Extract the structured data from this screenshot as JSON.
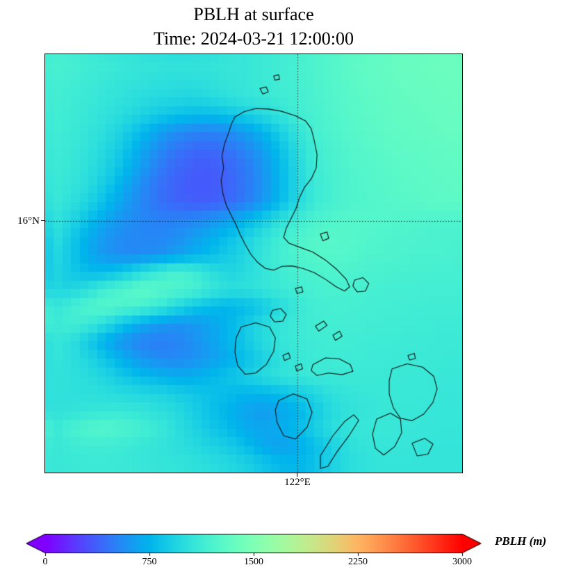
{
  "title": "PBLH at surface",
  "subtitle": "Time: 2024-03-21 12:00:00",
  "map": {
    "y_tick_label": "16°N",
    "x_tick_label": "122°E"
  },
  "colorbar": {
    "label": "PBLH (m)",
    "tick_labels": [
      "0",
      "750",
      "1500",
      "2250",
      "3000"
    ]
  },
  "chart_data": {
    "type": "heatmap",
    "title": "PBLH at surface",
    "subtitle": "Time: 2024-03-21 12:00:00",
    "variable": "PBLH",
    "units": "m",
    "colormap": "rainbow",
    "value_range": [
      0,
      3000
    ],
    "colorbar_ticks": [
      0,
      750,
      1500,
      2250,
      3000
    ],
    "gridlines": {
      "latitude": "16°N",
      "longitude": "122°E"
    },
    "grid_shape": [
      24,
      24
    ],
    "values_m": [
      [
        1180,
        1160,
        1130,
        1110,
        1090,
        1070,
        1060,
        1050,
        1050,
        1060,
        1070,
        1080,
        1100,
        1130,
        1170,
        1210,
        1250,
        1290,
        1320,
        1340,
        1360,
        1370,
        1380,
        1380
      ],
      [
        1160,
        1140,
        1110,
        1080,
        1060,
        1040,
        1020,
        1010,
        1010,
        1030,
        1060,
        1080,
        1100,
        1130,
        1160,
        1200,
        1240,
        1280,
        1310,
        1330,
        1350,
        1360,
        1370,
        1380
      ],
      [
        1150,
        1120,
        1090,
        1060,
        1030,
        1000,
        980,
        960,
        950,
        980,
        1020,
        1060,
        1090,
        1120,
        1150,
        1190,
        1230,
        1270,
        1300,
        1320,
        1340,
        1350,
        1360,
        1370
      ],
      [
        1140,
        1110,
        1080,
        1040,
        990,
        930,
        870,
        820,
        790,
        790,
        830,
        890,
        960,
        1050,
        1130,
        1180,
        1220,
        1260,
        1290,
        1310,
        1330,
        1340,
        1350,
        1360
      ],
      [
        1130,
        1100,
        1060,
        1000,
        910,
        790,
        660,
        570,
        520,
        510,
        550,
        630,
        740,
        890,
        1050,
        1160,
        1210,
        1250,
        1280,
        1300,
        1320,
        1330,
        1340,
        1350
      ],
      [
        1120,
        1090,
        1040,
        960,
        850,
        700,
        560,
        460,
        410,
        400,
        440,
        520,
        640,
        800,
        990,
        1130,
        1190,
        1230,
        1260,
        1290,
        1300,
        1310,
        1320,
        1330
      ],
      [
        1110,
        1080,
        1020,
        930,
        800,
        640,
        500,
        410,
        360,
        350,
        390,
        470,
        590,
        760,
        960,
        1110,
        1180,
        1220,
        1250,
        1270,
        1290,
        1300,
        1310,
        1320
      ],
      [
        1100,
        1060,
        990,
        870,
        720,
        570,
        450,
        380,
        340,
        340,
        380,
        460,
        580,
        750,
        950,
        1100,
        1170,
        1210,
        1240,
        1260,
        1280,
        1290,
        1300,
        1310
      ],
      [
        1090,
        1030,
        930,
        790,
        650,
        540,
        450,
        390,
        360,
        360,
        400,
        480,
        600,
        770,
        960,
        1100,
        1170,
        1210,
        1230,
        1250,
        1270,
        1280,
        1290,
        1300
      ],
      [
        1060,
        950,
        810,
        680,
        590,
        540,
        510,
        510,
        530,
        580,
        650,
        740,
        870,
        1010,
        1120,
        1190,
        1230,
        1250,
        1250,
        1240,
        1230,
        1220,
        1210,
        1210
      ],
      [
        1020,
        880,
        720,
        610,
        550,
        530,
        530,
        560,
        630,
        710,
        800,
        900,
        1020,
        1130,
        1200,
        1250,
        1260,
        1250,
        1230,
        1220,
        1210,
        1200,
        1190,
        1190
      ],
      [
        980,
        850,
        700,
        600,
        550,
        550,
        570,
        630,
        710,
        790,
        870,
        950,
        1060,
        1150,
        1210,
        1250,
        1250,
        1240,
        1220,
        1210,
        1200,
        1190,
        1190,
        1180
      ],
      [
        950,
        860,
        790,
        790,
        860,
        980,
        1100,
        1180,
        1140,
        1020,
        940,
        980,
        1060,
        1120,
        1170,
        1200,
        1210,
        1200,
        1190,
        1180,
        1170,
        1170,
        1160,
        1160
      ],
      [
        960,
        940,
        1020,
        1140,
        1220,
        1300,
        1260,
        1220,
        1180,
        1100,
        1020,
        1020,
        1060,
        1100,
        1140,
        1170,
        1180,
        1170,
        1170,
        1160,
        1150,
        1150,
        1140,
        1140
      ],
      [
        1060,
        1140,
        1220,
        1260,
        1220,
        1180,
        1100,
        980,
        860,
        790,
        750,
        790,
        860,
        980,
        1080,
        1140,
        1160,
        1160,
        1150,
        1140,
        1140,
        1130,
        1130,
        1130
      ],
      [
        1100,
        1140,
        1100,
        980,
        830,
        710,
        630,
        590,
        610,
        670,
        750,
        860,
        980,
        1060,
        1110,
        1140,
        1150,
        1140,
        1140,
        1130,
        1130,
        1120,
        1120,
        1110
      ],
      [
        1080,
        1020,
        870,
        710,
        590,
        510,
        490,
        510,
        570,
        650,
        750,
        860,
        980,
        1060,
        1100,
        1120,
        1130,
        1130,
        1120,
        1120,
        1110,
        1110,
        1100,
        1100
      ],
      [
        1060,
        1020,
        940,
        830,
        710,
        610,
        550,
        540,
        570,
        630,
        710,
        800,
        900,
        1020,
        1080,
        1110,
        1120,
        1120,
        1110,
        1110,
        1100,
        1100,
        1100,
        1090
      ],
      [
        1040,
        1030,
        1000,
        940,
        860,
        790,
        750,
        710,
        720,
        770,
        830,
        900,
        980,
        1040,
        1080,
        1100,
        1100,
        1100,
        1100,
        1090,
        1090,
        1090,
        1080,
        1080
      ],
      [
        1030,
        1020,
        1020,
        1000,
        980,
        960,
        940,
        900,
        860,
        820,
        790,
        750,
        750,
        790,
        860,
        940,
        1020,
        1060,
        1080,
        1090,
        1090,
        1090,
        1080,
        1080
      ],
      [
        1040,
        1050,
        1060,
        1080,
        1080,
        1060,
        1020,
        980,
        900,
        820,
        750,
        670,
        630,
        670,
        750,
        860,
        980,
        1040,
        1070,
        1080,
        1080,
        1080,
        1070,
        1070
      ],
      [
        1090,
        1170,
        1230,
        1250,
        1210,
        1160,
        1100,
        1020,
        940,
        860,
        790,
        710,
        670,
        710,
        790,
        900,
        1000,
        1060,
        1080,
        1090,
        1080,
        1080,
        1070,
        1070
      ],
      [
        1080,
        1110,
        1130,
        1130,
        1110,
        1080,
        1060,
        1020,
        980,
        930,
        880,
        800,
        700,
        650,
        700,
        800,
        920,
        1010,
        1060,
        1070,
        1070,
        1060,
        1060,
        1060
      ],
      [
        1080,
        1090,
        1100,
        1100,
        1090,
        1080,
        1060,
        1050,
        1030,
        1000,
        970,
        920,
        850,
        780,
        760,
        820,
        920,
        1000,
        1040,
        1060,
        1060,
        1060,
        1060,
        1060
      ]
    ]
  }
}
